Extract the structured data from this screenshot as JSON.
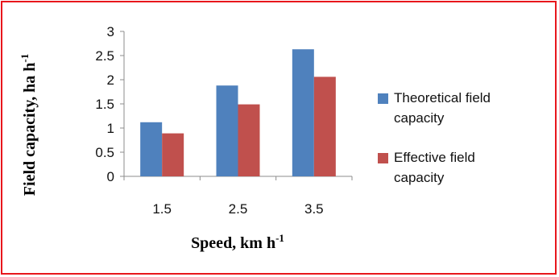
{
  "chart_data": {
    "type": "bar",
    "categories": [
      "1.5",
      "2.5",
      "3.5"
    ],
    "series": [
      {
        "name": "Theoretical field capacity",
        "legend_lines": [
          "Theoretical field",
          "capacity"
        ],
        "values": [
          1.12,
          1.88,
          2.63
        ],
        "color": "#4f81bd"
      },
      {
        "name": "Effective field capacity",
        "legend_lines": [
          "Effective field",
          "capacity"
        ],
        "values": [
          0.89,
          1.49,
          2.06
        ],
        "color": "#c0504d"
      }
    ],
    "xlabel": "Speed, km h",
    "xlabel_sup": "-1",
    "ylabel": "Field capacity, ha h",
    "ylabel_sup": "-1",
    "ylim": [
      0,
      3
    ],
    "yticks": [
      "0",
      "0.5",
      "1",
      "1.5",
      "2",
      "2.5",
      "3"
    ],
    "grid": false,
    "legend_position": "right"
  }
}
